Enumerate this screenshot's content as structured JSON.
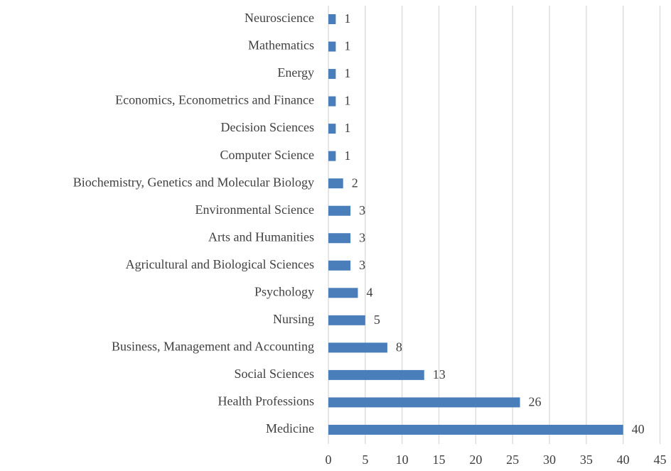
{
  "chart_data": {
    "type": "bar",
    "orientation": "horizontal",
    "categories": [
      "Neuroscience",
      "Mathematics",
      "Energy",
      "Economics, Econometrics and Finance",
      "Decision Sciences",
      "Computer Science",
      "Biochemistry, Genetics and Molecular Biology",
      "Environmental Science",
      "Arts and Humanities",
      "Agricultural and Biological Sciences",
      "Psychology",
      "Nursing",
      "Business, Management and Accounting",
      "Social Sciences",
      "Health Professions",
      "Medicine"
    ],
    "values": [
      1,
      1,
      1,
      1,
      1,
      1,
      2,
      3,
      3,
      3,
      4,
      5,
      8,
      13,
      26,
      40
    ],
    "color": "#4a7ebb",
    "xlim": [
      0,
      45
    ],
    "xticks": [
      0,
      5,
      10,
      15,
      20,
      25,
      30,
      35,
      40,
      45
    ],
    "grid": true
  }
}
